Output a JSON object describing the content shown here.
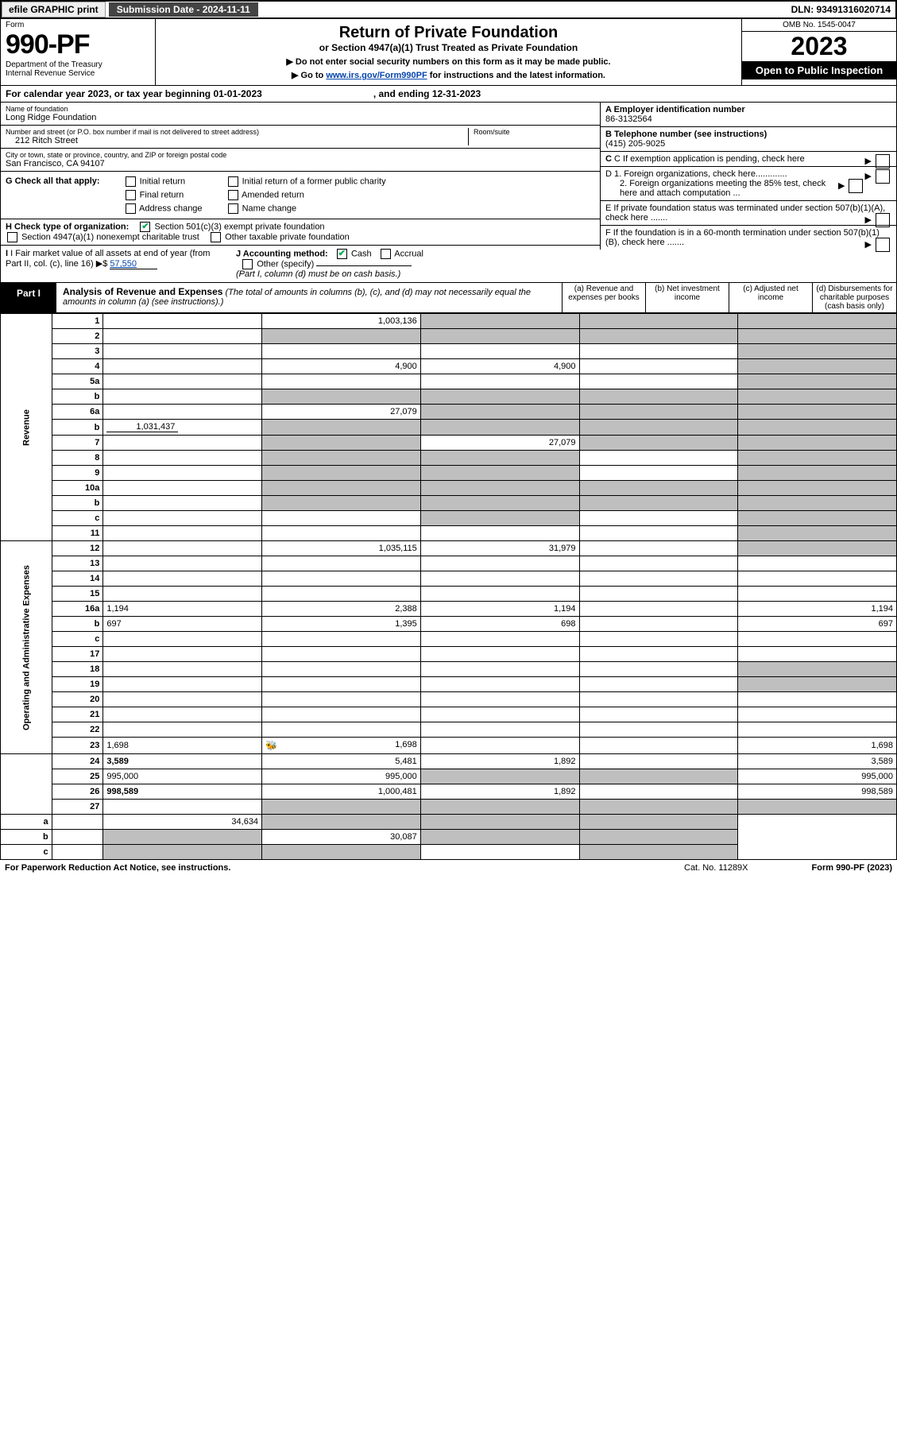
{
  "top": {
    "efile": "efile GRAPHIC print",
    "submission": "Submission Date - 2024-11-11",
    "dln": "DLN: 93491316020714"
  },
  "header": {
    "form_label": "Form",
    "form_num": "990-PF",
    "dept": "Department of the Treasury",
    "irs": "Internal Revenue Service",
    "title": "Return of Private Foundation",
    "subtitle": "or Section 4947(a)(1) Trust Treated as Private Foundation",
    "note1": "▶ Do not enter social security numbers on this form as it may be made public.",
    "note2_pre": "▶ Go to ",
    "note2_link": "www.irs.gov/Form990PF",
    "note2_post": " for instructions and the latest information.",
    "omb": "OMB No. 1545-0047",
    "year": "2023",
    "open": "Open to Public Inspection"
  },
  "calendar": {
    "pre": "For calendar year 2023, or tax year beginning 01-01-2023",
    "end": ", and ending 12-31-2023"
  },
  "entity": {
    "name_label": "Name of foundation",
    "name": "Long Ridge Foundation",
    "addr_label": "Number and street (or P.O. box number if mail is not delivered to street address)",
    "addr": "212 Ritch Street",
    "room_label": "Room/suite",
    "city_label": "City or town, state or province, country, and ZIP or foreign postal code",
    "city": "San Francisco, CA  94107",
    "ein_label": "A Employer identification number",
    "ein": "86-3132564",
    "phone_label": "B Telephone number (see instructions)",
    "phone": "(415) 205-9025",
    "c_label": "C If exemption application is pending, check here",
    "d1": "D 1. Foreign organizations, check here.............",
    "d2": "2. Foreign organizations meeting the 85% test, check here and attach computation ...",
    "e_label": "E  If private foundation status was terminated under section 507(b)(1)(A), check here .......",
    "f_label": "F  If the foundation is in a 60-month termination under section 507(b)(1)(B), check here .......",
    "g_label": "G Check all that apply:",
    "g_opts": [
      "Initial return",
      "Final return",
      "Address change",
      "Initial return of a former public charity",
      "Amended return",
      "Name change"
    ],
    "h_label": "H Check type of organization:",
    "h1": "Section 501(c)(3) exempt private foundation",
    "h2": "Section 4947(a)(1) nonexempt charitable trust",
    "h3": "Other taxable private foundation",
    "i_label": "I Fair market value of all assets at end of year (from Part II, col. (c), line 16)",
    "i_val": "57,550",
    "j_label": "J Accounting method:",
    "j_cash": "Cash",
    "j_accrual": "Accrual",
    "j_other": "Other (specify)",
    "j_note": "(Part I, column (d) must be on cash basis.)"
  },
  "part1": {
    "tab": "Part I",
    "title": "Analysis of Revenue and Expenses",
    "note": "(The total of amounts in columns (b), (c), and (d) may not necessarily equal the amounts in column (a) (see instructions).)",
    "col_a": "(a)   Revenue and expenses per books",
    "col_b": "(b)   Net investment income",
    "col_c": "(c)   Adjusted net income",
    "col_d": "(d)  Disbursements for charitable purposes (cash basis only)"
  },
  "sections": {
    "revenue": "Revenue",
    "expenses": "Operating and Administrative Expenses"
  },
  "rows": [
    {
      "n": "1",
      "d": "",
      "a": "1,003,136",
      "b": "",
      "c": "",
      "shade": [
        "b",
        "c",
        "d"
      ]
    },
    {
      "n": "2",
      "d": "",
      "a": "",
      "b": "",
      "c": "",
      "shade": [
        "a",
        "b",
        "c",
        "d"
      ]
    },
    {
      "n": "3",
      "d": "",
      "a": "",
      "b": "",
      "c": "",
      "shade": [
        "d"
      ]
    },
    {
      "n": "4",
      "d": "",
      "a": "4,900",
      "b": "4,900",
      "c": "",
      "shade": [
        "d"
      ]
    },
    {
      "n": "5a",
      "d": "",
      "a": "",
      "b": "",
      "c": "",
      "shade": [
        "d"
      ]
    },
    {
      "n": "b",
      "d": "",
      "a": "",
      "b": "",
      "c": "",
      "shade": [
        "a",
        "b",
        "c",
        "d"
      ]
    },
    {
      "n": "6a",
      "d": "",
      "a": "27,079",
      "b": "",
      "c": "",
      "shade": [
        "b",
        "c",
        "d"
      ]
    },
    {
      "n": "b",
      "d": "",
      "inline": "1,031,437",
      "a": "",
      "b": "",
      "c": "",
      "shade": [
        "a",
        "b",
        "c",
        "d"
      ]
    },
    {
      "n": "7",
      "d": "",
      "a": "",
      "b": "27,079",
      "c": "",
      "shade": [
        "a",
        "c",
        "d"
      ]
    },
    {
      "n": "8",
      "d": "",
      "a": "",
      "b": "",
      "c": "",
      "shade": [
        "a",
        "b",
        "d"
      ]
    },
    {
      "n": "9",
      "d": "",
      "a": "",
      "b": "",
      "c": "",
      "shade": [
        "a",
        "b",
        "d"
      ]
    },
    {
      "n": "10a",
      "d": "",
      "a": "",
      "b": "",
      "c": "",
      "shade": [
        "a",
        "b",
        "c",
        "d"
      ]
    },
    {
      "n": "b",
      "d": "",
      "a": "",
      "b": "",
      "c": "",
      "shade": [
        "a",
        "b",
        "c",
        "d"
      ]
    },
    {
      "n": "c",
      "d": "",
      "a": "",
      "b": "",
      "c": "",
      "shade": [
        "b",
        "d"
      ]
    },
    {
      "n": "11",
      "d": "",
      "a": "",
      "b": "",
      "c": "",
      "shade": [
        "d"
      ]
    },
    {
      "n": "12",
      "d": "",
      "bold": true,
      "a": "1,035,115",
      "b": "31,979",
      "c": "",
      "shade": [
        "d"
      ]
    },
    {
      "n": "13",
      "d": "",
      "a": "",
      "b": "",
      "c": ""
    },
    {
      "n": "14",
      "d": "",
      "a": "",
      "b": "",
      "c": ""
    },
    {
      "n": "15",
      "d": "",
      "a": "",
      "b": "",
      "c": ""
    },
    {
      "n": "16a",
      "d": "1,194",
      "a": "2,388",
      "b": "1,194",
      "c": ""
    },
    {
      "n": "b",
      "d": "697",
      "a": "1,395",
      "b": "698",
      "c": ""
    },
    {
      "n": "c",
      "d": "",
      "a": "",
      "b": "",
      "c": ""
    },
    {
      "n": "17",
      "d": "",
      "a": "",
      "b": "",
      "c": ""
    },
    {
      "n": "18",
      "d": "",
      "a": "",
      "b": "",
      "c": "",
      "shade": [
        "d"
      ]
    },
    {
      "n": "19",
      "d": "",
      "a": "",
      "b": "",
      "c": "",
      "shade": [
        "d"
      ]
    },
    {
      "n": "20",
      "d": "",
      "a": "",
      "b": "",
      "c": ""
    },
    {
      "n": "21",
      "d": "",
      "a": "",
      "b": "",
      "c": ""
    },
    {
      "n": "22",
      "d": "",
      "a": "",
      "b": "",
      "c": ""
    },
    {
      "n": "23",
      "d": "1,698",
      "icon": true,
      "a": "1,698",
      "b": "",
      "c": ""
    },
    {
      "n": "24",
      "d": "3,589",
      "bold": true,
      "a": "5,481",
      "b": "1,892",
      "c": ""
    },
    {
      "n": "25",
      "d": "995,000",
      "a": "995,000",
      "b": "",
      "c": "",
      "shade": [
        "b",
        "c"
      ]
    },
    {
      "n": "26",
      "d": "998,589",
      "bold": true,
      "a": "1,000,481",
      "b": "1,892",
      "c": ""
    },
    {
      "n": "27",
      "d": "",
      "a": "",
      "b": "",
      "c": "",
      "shade": [
        "a",
        "b",
        "c",
        "d"
      ]
    },
    {
      "n": "a",
      "d": "",
      "bold": true,
      "a": "34,634",
      "b": "",
      "c": "",
      "shade": [
        "b",
        "c",
        "d"
      ]
    },
    {
      "n": "b",
      "d": "",
      "bold": true,
      "a": "",
      "b": "30,087",
      "c": "",
      "shade": [
        "a",
        "c",
        "d"
      ]
    },
    {
      "n": "c",
      "d": "",
      "bold": true,
      "a": "",
      "b": "",
      "c": "",
      "shade": [
        "a",
        "b",
        "d"
      ]
    }
  ],
  "footer": {
    "left": "For Paperwork Reduction Act Notice, see instructions.",
    "cat": "Cat. No. 11289X",
    "right": "Form 990-PF (2023)"
  }
}
